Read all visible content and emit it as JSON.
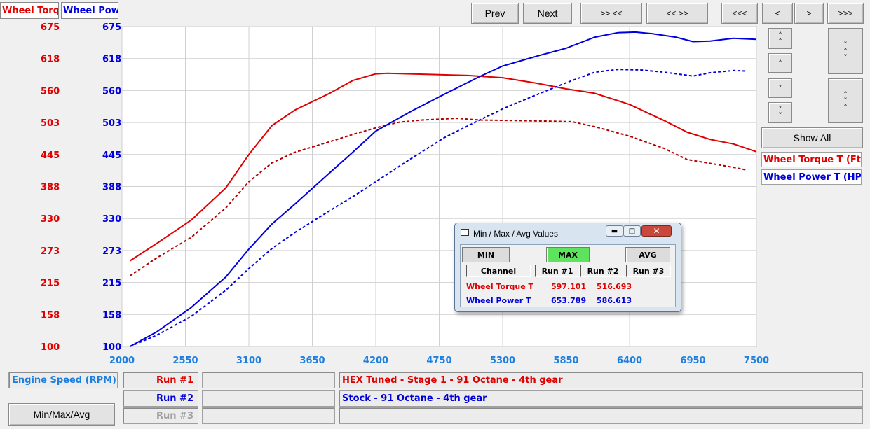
{
  "colors": {
    "torque": "#e00000",
    "torque_dark": "#b00000",
    "power": "#0000dd",
    "axis_x": "#1e7fe0",
    "max_active": "#5ee35e"
  },
  "tabs": {
    "torque": "Wheel Torq",
    "power": "Wheel Pow"
  },
  "nav": {
    "prev": "Prev",
    "next": "Next",
    "zoom_in": ">> <<",
    "zoom_out": "<< >>",
    "far_left": "<<<",
    "left": "<",
    "right": ">",
    "far_right": ">>>"
  },
  "side": {
    "show_all": "Show All",
    "legend_torque": "Wheel Torque T (Ft-lb)",
    "legend_power": "Wheel Power T (HP)"
  },
  "side_icons": [
    "chevron-double-up-icon",
    "chevron-up-icon",
    "chevron-down-icon",
    "chevron-double-down-icon",
    "expand-vertical-icon",
    "compress-vertical-icon"
  ],
  "bottom": {
    "xaxis_channel": "Engine Speed (RPM)",
    "min_max_avg": "Min/Max/Avg",
    "runs": [
      {
        "label": "Run #1",
        "desc": "HEX Tuned - Stage 1 - 91 Octane - 4th gear"
      },
      {
        "label": "Run #2",
        "desc": "Stock - 91 Octane - 4th gear"
      },
      {
        "label": "Run #3",
        "desc": ""
      }
    ]
  },
  "dialog": {
    "title": "Min / Max / Avg Values",
    "min": "MIN",
    "max": "MAX",
    "avg": "AVG",
    "headers": [
      "Channel",
      "Run #1",
      "Run #2",
      "Run #3"
    ],
    "rows": [
      {
        "channel": "Wheel Torque T",
        "run1": "597.101",
        "run2": "516.693",
        "run3": ""
      },
      {
        "channel": "Wheel Power T",
        "run1": "653.789",
        "run2": "586.613",
        "run3": ""
      }
    ]
  },
  "chart_data": {
    "type": "line",
    "xlim": [
      2000,
      7500
    ],
    "x_ticks": [
      "2000",
      "2550",
      "3100",
      "3650",
      "4200",
      "4750",
      "5300",
      "5850",
      "6400",
      "6950",
      "7500"
    ],
    "ylim": [
      100,
      675
    ],
    "y_ticks_left": [
      "675",
      "618",
      "560",
      "503",
      "445",
      "388",
      "330",
      "273",
      "215",
      "158",
      "100"
    ],
    "y_ticks_right": [
      "675",
      "618",
      "560",
      "503",
      "445",
      "388",
      "330",
      "273",
      "215",
      "158",
      "100"
    ],
    "grid": true,
    "series": [
      {
        "name": "Wheel Torque T",
        "run": "Run #1",
        "axis": "left",
        "style": "solid",
        "color": "#e00000",
        "points": [
          [
            2070,
            254
          ],
          [
            2300,
            285
          ],
          [
            2600,
            327
          ],
          [
            2900,
            385
          ],
          [
            3100,
            445
          ],
          [
            3300,
            497
          ],
          [
            3500,
            525
          ],
          [
            3800,
            555
          ],
          [
            4000,
            578
          ],
          [
            4200,
            590
          ],
          [
            4300,
            591
          ],
          [
            4500,
            590
          ],
          [
            5000,
            587
          ],
          [
            5300,
            583
          ],
          [
            5600,
            573
          ],
          [
            5850,
            563
          ],
          [
            6100,
            555
          ],
          [
            6400,
            535
          ],
          [
            6700,
            506
          ],
          [
            6900,
            485
          ],
          [
            7100,
            472
          ],
          [
            7300,
            464
          ],
          [
            7500,
            450
          ]
        ]
      },
      {
        "name": "Wheel Torque T",
        "run": "Run #2",
        "axis": "left",
        "style": "dashed",
        "color": "#b00000",
        "points": [
          [
            2070,
            227
          ],
          [
            2300,
            259
          ],
          [
            2600,
            296
          ],
          [
            2900,
            349
          ],
          [
            3100,
            396
          ],
          [
            3300,
            430
          ],
          [
            3500,
            449
          ],
          [
            3800,
            468
          ],
          [
            4000,
            481
          ],
          [
            4200,
            493
          ],
          [
            4400,
            503
          ],
          [
            4600,
            507
          ],
          [
            4900,
            510
          ],
          [
            5100,
            507
          ],
          [
            5400,
            506
          ],
          [
            5700,
            505
          ],
          [
            5900,
            504
          ],
          [
            6100,
            495
          ],
          [
            6400,
            478
          ],
          [
            6700,
            456
          ],
          [
            6900,
            436
          ],
          [
            7100,
            429
          ],
          [
            7300,
            422
          ],
          [
            7420,
            417
          ]
        ]
      },
      {
        "name": "Wheel Power T",
        "run": "Run #1",
        "axis": "right",
        "style": "solid",
        "color": "#0000dd",
        "points": [
          [
            2070,
            100
          ],
          [
            2300,
            126
          ],
          [
            2600,
            170
          ],
          [
            2900,
            225
          ],
          [
            3100,
            275
          ],
          [
            3300,
            320
          ],
          [
            3500,
            356
          ],
          [
            3800,
            412
          ],
          [
            4000,
            449
          ],
          [
            4200,
            487
          ],
          [
            4500,
            522
          ],
          [
            4800,
            554
          ],
          [
            5100,
            585
          ],
          [
            5300,
            604
          ],
          [
            5600,
            622
          ],
          [
            5850,
            636
          ],
          [
            6100,
            656
          ],
          [
            6300,
            664
          ],
          [
            6450,
            665
          ],
          [
            6600,
            662
          ],
          [
            6800,
            656
          ],
          [
            6950,
            648
          ],
          [
            7100,
            649
          ],
          [
            7300,
            654
          ],
          [
            7500,
            652
          ]
        ]
      },
      {
        "name": "Wheel Power T",
        "run": "Run #2",
        "axis": "right",
        "style": "dashed",
        "color": "#0000dd",
        "points": [
          [
            2070,
            100
          ],
          [
            2300,
            120
          ],
          [
            2600,
            154
          ],
          [
            2900,
            201
          ],
          [
            3100,
            240
          ],
          [
            3300,
            276
          ],
          [
            3500,
            305
          ],
          [
            3800,
            344
          ],
          [
            4000,
            369
          ],
          [
            4200,
            396
          ],
          [
            4500,
            437
          ],
          [
            4800,
            476
          ],
          [
            5100,
            507
          ],
          [
            5300,
            527
          ],
          [
            5600,
            553
          ],
          [
            5850,
            574
          ],
          [
            6100,
            593
          ],
          [
            6300,
            598
          ],
          [
            6500,
            597
          ],
          [
            6700,
            593
          ],
          [
            6950,
            586
          ],
          [
            7100,
            592
          ],
          [
            7300,
            596
          ],
          [
            7420,
            595
          ]
        ]
      }
    ]
  }
}
